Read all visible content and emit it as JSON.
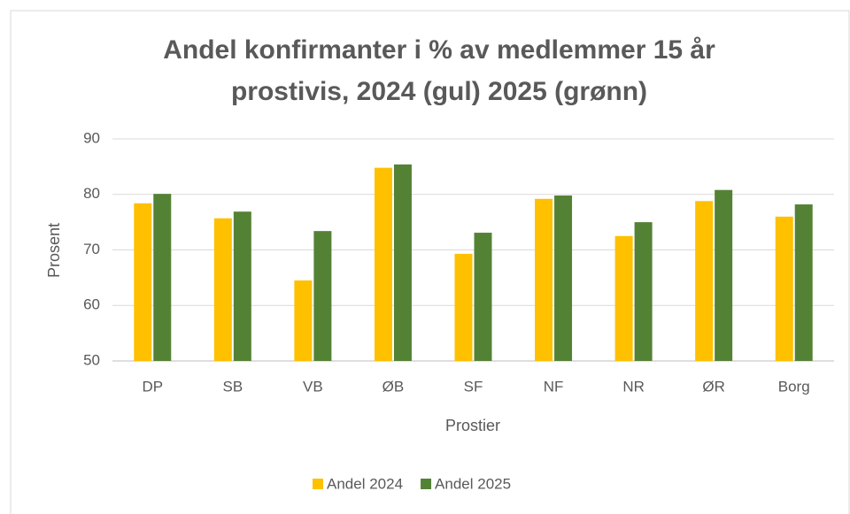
{
  "chart_data": {
    "type": "bar",
    "title": [
      "Andel konfirmanter i % av medlemmer 15 år",
      "prostivis, 2024 (gul) 2025 (grønn)"
    ],
    "x_label": "Prostier",
    "y_label": "Prosent",
    "categories": [
      "DP",
      "SB",
      "VB",
      "ØB",
      "SF",
      "NF",
      "NR",
      "ØR",
      "Borg"
    ],
    "series": [
      {
        "name": "Andel 2024",
        "color": "#ffc000",
        "values": [
          78.4,
          75.7,
          64.5,
          84.8,
          69.3,
          79.2,
          72.5,
          78.8,
          76.0
        ]
      },
      {
        "name": "Andel 2025",
        "color": "#548235",
        "values": [
          80.1,
          76.9,
          73.4,
          85.4,
          73.1,
          79.8,
          75.0,
          80.8,
          78.2
        ]
      }
    ],
    "ylim": [
      50,
      90
    ],
    "yticks": [
      50,
      60,
      70,
      80,
      90
    ],
    "grid": true,
    "legend": "bottom"
  }
}
